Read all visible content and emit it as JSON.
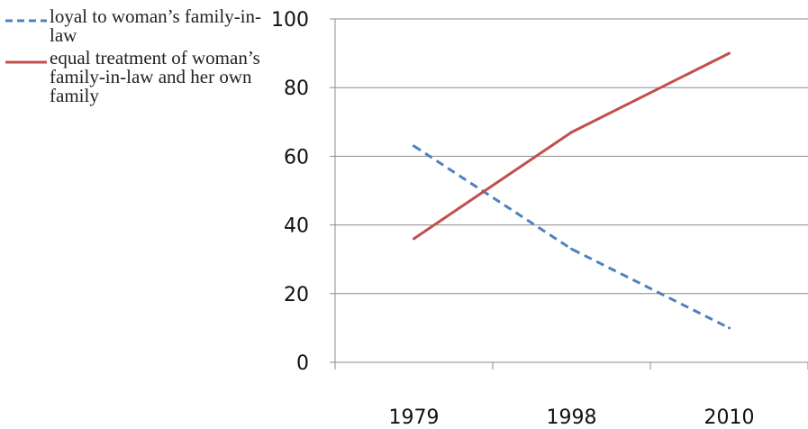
{
  "chart_data": {
    "type": "line",
    "categories": [
      "1979",
      "1998",
      "2010"
    ],
    "ylim": [
      0,
      100
    ],
    "yticks": [
      0,
      20,
      40,
      60,
      80,
      100
    ],
    "grid": true,
    "legend_position": "left",
    "series": [
      {
        "name": "loyal to woman’s family-in-law",
        "values": [
          63,
          33,
          10
        ],
        "color": "#4f81bd",
        "dash": "dashed"
      },
      {
        "name": "equal treatment of woman’s family-in-law and her own family",
        "values": [
          36,
          67,
          90
        ],
        "color": "#c0504d",
        "dash": "solid"
      }
    ]
  }
}
